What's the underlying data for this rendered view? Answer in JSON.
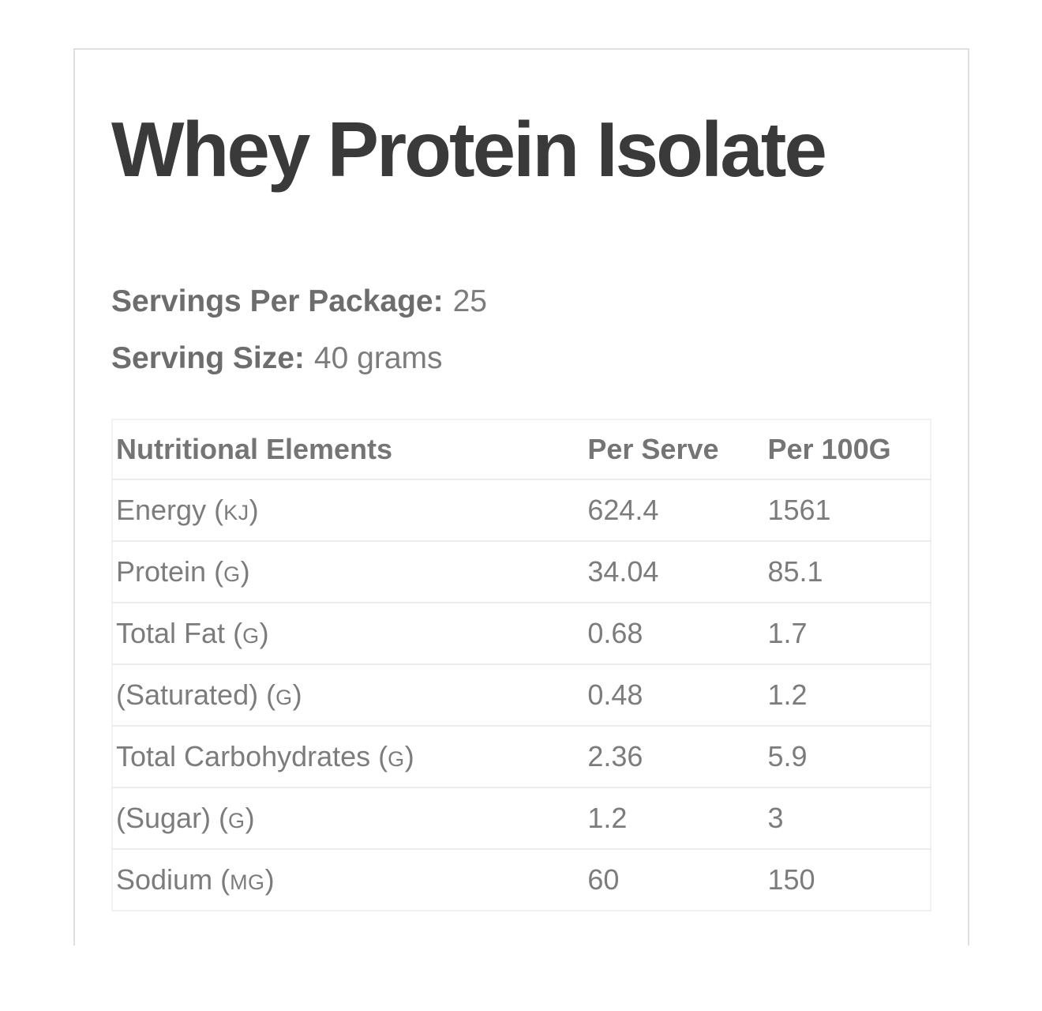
{
  "card": {
    "title": "Whey Protein Isolate",
    "servings": {
      "label": "Servings Per Package:",
      "value": "25"
    },
    "serving_size": {
      "label": "Serving Size:",
      "value": "40 grams"
    }
  },
  "table": {
    "columns": [
      "Nutritional Elements",
      "Per Serve",
      "Per 100G"
    ],
    "rows": [
      {
        "name": "Energy",
        "unit": "(KJ)",
        "per_serve": "624.4",
        "per_100g": "1561"
      },
      {
        "name": "Protein",
        "unit": "(G)",
        "per_serve": "34.04",
        "per_100g": "85.1"
      },
      {
        "name": "Total Fat",
        "unit": "(G)",
        "per_serve": "0.68",
        "per_100g": "1.7"
      },
      {
        "name": "(Saturated)",
        "unit": "(G)",
        "per_serve": "0.48",
        "per_100g": "1.2"
      },
      {
        "name": "Total Carbohydrates",
        "unit": "(G)",
        "per_serve": "2.36",
        "per_100g": "5.9"
      },
      {
        "name": "(Sugar)",
        "unit": "(G)",
        "per_serve": "1.2",
        "per_100g": "3"
      },
      {
        "name": "Sodium",
        "unit": "(MG)",
        "per_serve": "60",
        "per_100g": "150"
      }
    ]
  },
  "colors": {
    "heading": "#3a3a3a",
    "label": "#6d6d6d",
    "body_text": "#7c7c7c",
    "card_border": "#dfdfdf",
    "table_border": "#f1f1f1",
    "row_border": "#ececec",
    "background": "#ffffff"
  }
}
